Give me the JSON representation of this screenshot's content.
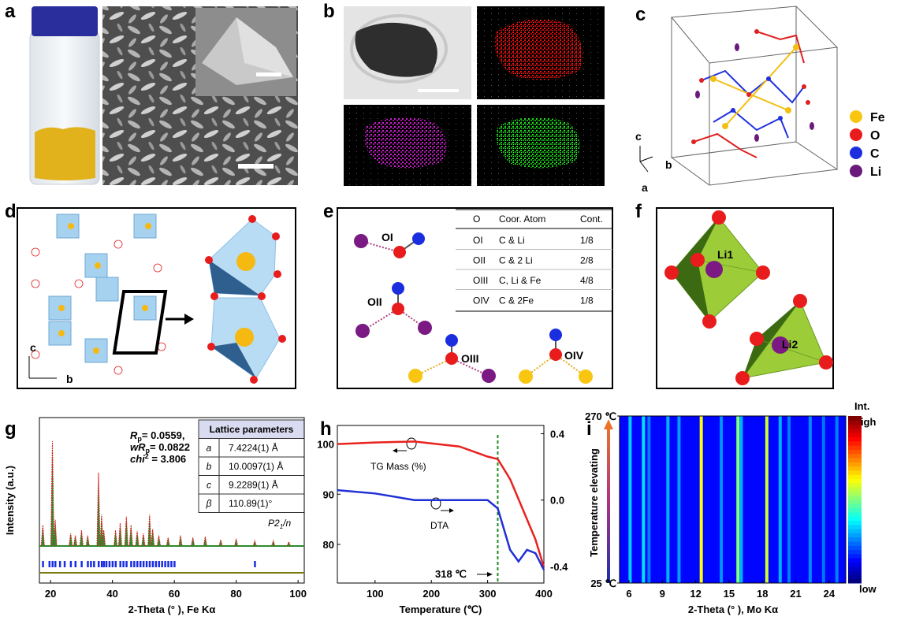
{
  "panel_labels": [
    "a",
    "b",
    "c",
    "d",
    "e",
    "f",
    "g",
    "h",
    "i"
  ],
  "panel_c": {
    "axes": [
      "c",
      "b",
      "a"
    ],
    "legend": [
      "Fe",
      "O",
      "C",
      "Li"
    ]
  },
  "panel_d": {
    "axes": [
      "c",
      "b"
    ]
  },
  "panel_e": {
    "labels": [
      "OI",
      "OII",
      "OIII",
      "OIV"
    ],
    "table": {
      "header": [
        "O",
        "Coor. Atom",
        "Cont."
      ],
      "rows": [
        [
          "OI",
          "C & Li",
          "1/8"
        ],
        [
          "OII",
          "C & 2 Li",
          "2/8"
        ],
        [
          "OIII",
          "C, Li & Fe",
          "4/8"
        ],
        [
          "OIV",
          "C & 2Fe",
          "1/8"
        ]
      ]
    }
  },
  "panel_f": {
    "labels": [
      "Li1",
      "Li2"
    ]
  },
  "chart_data": [
    {
      "type": "peaks",
      "xlabel": "2-Theta (° ), Fe Kα",
      "ylabel": "Intensity (a.u.)",
      "xlim": [
        16.4,
        102
      ],
      "xticks": [
        20,
        40,
        60,
        80,
        100
      ],
      "x": [
        17.5,
        20.6,
        21.5,
        26.5,
        28,
        30,
        32,
        35.5,
        36.5,
        37.2,
        41,
        42.5,
        44.5,
        46,
        48,
        50,
        52,
        53,
        55,
        58,
        62,
        66,
        70,
        75,
        80,
        86,
        92,
        97
      ],
      "values": [
        20,
        100,
        25,
        12,
        10,
        15,
        10,
        70,
        30,
        15,
        15,
        22,
        28,
        20,
        14,
        12,
        30,
        16,
        10,
        8,
        10,
        8,
        9,
        6,
        7,
        5,
        5,
        4
      ],
      "reflections": [
        17.5,
        19.6,
        20.6,
        21.5,
        23,
        24.5,
        26.5,
        28,
        30,
        32,
        33,
        34,
        35.5,
        36.5,
        37.2,
        38,
        39,
        40,
        41,
        42.5,
        43.5,
        44.5,
        46,
        47,
        48,
        49,
        50,
        51,
        52,
        53,
        54,
        55,
        56,
        57,
        58,
        59,
        60,
        86
      ],
      "stats": [
        [
          "R",
          "p",
          "= 0.0559,"
        ],
        [
          "wR",
          "p",
          "= 0.0822"
        ],
        [
          "chi",
          "2",
          " = 3.806"
        ]
      ],
      "table": {
        "header": "Lattice parameters",
        "rows": [
          [
            "a",
            "7.4224(1) Å"
          ],
          [
            "b",
            "10.0097(1) Å"
          ],
          [
            "c",
            "9.2289(1) Å"
          ],
          [
            "β",
            "110.89(1)°"
          ]
        ]
      },
      "space_group": [
        "P2",
        "1",
        "/n"
      ]
    },
    {
      "type": "line",
      "xlabel": "Temperature (℃)",
      "xlim": [
        33,
        400
      ],
      "xticks": [
        100,
        200,
        300,
        400
      ],
      "ylim": [
        72.3,
        103.7
      ],
      "yticks": [
        80,
        90,
        100
      ],
      "y2lim": [
        -0.5,
        0.45
      ],
      "y2ticks": [
        0.4,
        {
          "value": 0,
          "label": "0.0"
        },
        -0.4
      ],
      "x": [
        33,
        100,
        170,
        250,
        300,
        318,
        340,
        355,
        370,
        385,
        400
      ],
      "series": [
        {
          "name": "TG Mass (%)",
          "color": "#e8221e",
          "values": [
            100,
            100.3,
            100.5,
            99.5,
            97.5,
            97,
            93,
            89,
            85,
            81,
            75.5
          ]
        },
        {
          "name": "DTA",
          "color": "#1f2fd6",
          "axis": "y2",
          "values": [
            0.06,
            0.04,
            0.0,
            0.0,
            0.0,
            -0.05,
            -0.3,
            -0.37,
            -0.3,
            -0.32,
            -0.42
          ]
        }
      ],
      "annotation": {
        "x": 318,
        "label": "318 ℃"
      }
    },
    {
      "type": "heatmap",
      "xlabel": "2-Theta (° ), Mo Kα",
      "ylabel": "Temperature elevating",
      "xlim": [
        5.15,
        25.5
      ],
      "xticks": [
        6,
        9,
        12,
        15,
        18,
        21,
        24
      ],
      "ylim": [
        25,
        270
      ],
      "yticks": [
        {
          "value": 25,
          "label": "25 ℃"
        },
        {
          "value": 270,
          "label": "270 ℃"
        }
      ],
      "x": [
        6.1,
        7.3,
        7.8,
        9.5,
        10.5,
        12.5,
        14.3,
        15.8,
        16.1,
        18.4,
        19.6,
        20.4,
        22.3,
        23.5,
        24.7
      ],
      "values": [
        0.33,
        0.35,
        0.25,
        0.3,
        0.28,
        0.62,
        0.27,
        0.5,
        0.3,
        0.58,
        0.3,
        0.25,
        0.26,
        0.24,
        0.25
      ],
      "colorbar": {
        "title": [
          "Int.",
          "high"
        ],
        "low": "low"
      }
    }
  ]
}
